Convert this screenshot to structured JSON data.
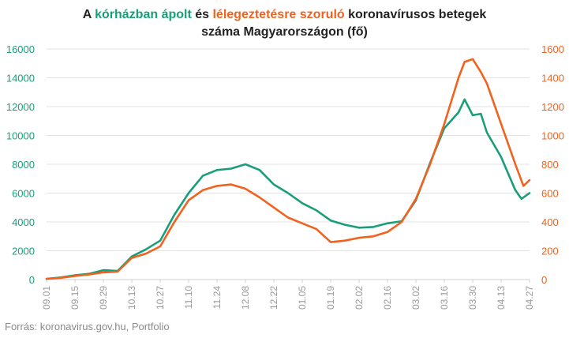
{
  "title": {
    "part1": "A ",
    "green_text": "kórházban ápolt",
    "part2": " és ",
    "orange_text": "lélegeztetésre szoruló",
    "part3": " koronavírusos betegek",
    "line2": "száma Magyarországon  (fő)"
  },
  "source": "Forrás: koronavirus.gov.hu, Portfolio",
  "colors": {
    "hospitalized": "#1a9e7a",
    "ventilated": "#f0621e",
    "grid": "#e3e3e3",
    "axis_tick": "#9a9a9a"
  },
  "chart_data": {
    "type": "line",
    "x_tick_labels": [
      "09.01",
      "09.15",
      "09.29",
      "10.13",
      "10.27",
      "11.10",
      "11.24",
      "12.08",
      "12.22",
      "01.05",
      "01.19",
      "02.02",
      "02.16",
      "03.02",
      "03.16",
      "03.30",
      "04.13",
      "04.27"
    ],
    "y_left": {
      "ticks": [
        "0",
        "2000",
        "4000",
        "6000",
        "8000",
        "10000",
        "12000",
        "14000",
        "16000"
      ],
      "range": [
        0,
        16000
      ]
    },
    "y_right": {
      "ticks": [
        "0",
        "200",
        "400",
        "600",
        "800",
        "1000",
        "1200",
        "1400",
        "1600"
      ],
      "range": [
        0,
        1600
      ]
    },
    "series": [
      {
        "name": "kórházban ápolt",
        "axis": "left",
        "points": [
          [
            0,
            50
          ],
          [
            7,
            150
          ],
          [
            14,
            300
          ],
          [
            21,
            400
          ],
          [
            28,
            650
          ],
          [
            35,
            600
          ],
          [
            42,
            1600
          ],
          [
            49,
            2100
          ],
          [
            56,
            2700
          ],
          [
            63,
            4500
          ],
          [
            70,
            6000
          ],
          [
            77,
            7200
          ],
          [
            84,
            7600
          ],
          [
            91,
            7700
          ],
          [
            98,
            8000
          ],
          [
            105,
            7600
          ],
          [
            112,
            6600
          ],
          [
            119,
            6000
          ],
          [
            126,
            5300
          ],
          [
            133,
            4800
          ],
          [
            140,
            4100
          ],
          [
            147,
            3800
          ],
          [
            154,
            3600
          ],
          [
            161,
            3650
          ],
          [
            168,
            3900
          ],
          [
            175,
            4050
          ],
          [
            182,
            5500
          ],
          [
            189,
            8100
          ],
          [
            196,
            10500
          ],
          [
            203,
            11600
          ],
          [
            206,
            12500
          ],
          [
            210,
            11400
          ],
          [
            214,
            11500
          ],
          [
            217,
            10200
          ],
          [
            224,
            8500
          ],
          [
            231,
            6200
          ],
          [
            234,
            5600
          ],
          [
            238,
            6000
          ]
        ]
      },
      {
        "name": "lélegeztetésre szoruló",
        "axis": "right",
        "points": [
          [
            0,
            5
          ],
          [
            7,
            12
          ],
          [
            14,
            25
          ],
          [
            21,
            35
          ],
          [
            28,
            50
          ],
          [
            35,
            55
          ],
          [
            42,
            150
          ],
          [
            49,
            180
          ],
          [
            56,
            230
          ],
          [
            63,
            400
          ],
          [
            70,
            550
          ],
          [
            77,
            620
          ],
          [
            84,
            650
          ],
          [
            91,
            660
          ],
          [
            98,
            630
          ],
          [
            105,
            570
          ],
          [
            112,
            500
          ],
          [
            119,
            430
          ],
          [
            126,
            390
          ],
          [
            133,
            350
          ],
          [
            140,
            260
          ],
          [
            147,
            270
          ],
          [
            154,
            290
          ],
          [
            161,
            300
          ],
          [
            168,
            330
          ],
          [
            175,
            400
          ],
          [
            182,
            560
          ],
          [
            189,
            800
          ],
          [
            196,
            1080
          ],
          [
            203,
            1400
          ],
          [
            206,
            1510
          ],
          [
            210,
            1530
          ],
          [
            214,
            1440
          ],
          [
            217,
            1360
          ],
          [
            224,
            1080
          ],
          [
            231,
            800
          ],
          [
            235,
            650
          ],
          [
            238,
            690
          ]
        ]
      }
    ],
    "x_range_days": [
      0,
      238
    ],
    "grid": "horizontal",
    "legend": "title-colored"
  }
}
